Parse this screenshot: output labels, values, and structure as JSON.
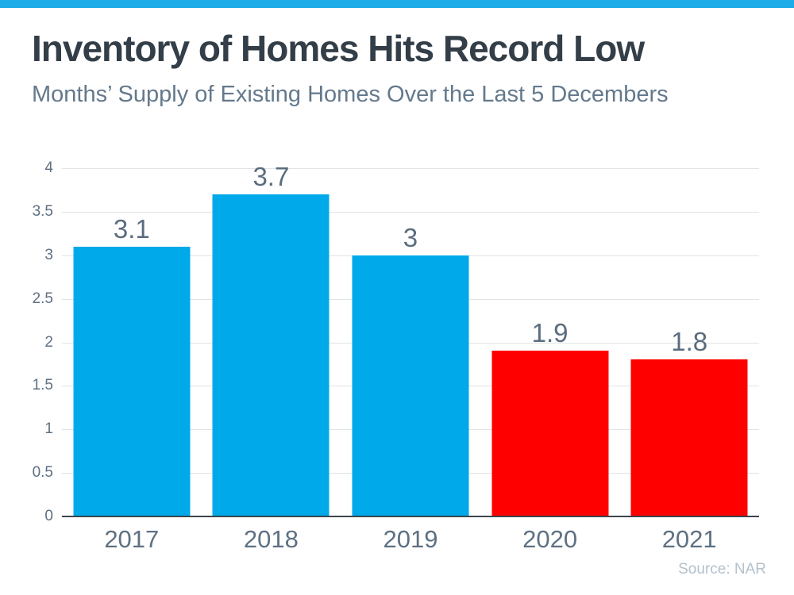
{
  "page": {
    "title": "Inventory of Homes Hits Record Low",
    "subtitle": "Months’ Supply of Existing Homes Over the Last 5 Decembers",
    "source": "Source: NAR"
  },
  "chart_data": {
    "type": "bar",
    "title": "Inventory of Homes Hits Record Low",
    "subtitle": "Months’ Supply of Existing Homes Over the Last 5 Decembers",
    "categories": [
      "2017",
      "2018",
      "2019",
      "2020",
      "2021"
    ],
    "values": [
      3.1,
      3.7,
      3,
      1.9,
      1.8
    ],
    "value_labels": [
      "3.1",
      "3.7",
      "3",
      "1.9",
      "1.8"
    ],
    "bar_colors": [
      "#00A9E9",
      "#00A9E9",
      "#00A9E9",
      "#FF0000",
      "#FF0000"
    ],
    "ylim": [
      0,
      4
    ],
    "yticks": [
      0,
      0.5,
      1,
      1.5,
      2,
      2.5,
      3,
      3.5,
      4
    ],
    "ytick_labels": [
      "0",
      "0.5",
      "1",
      "1.5",
      "2",
      "2.5",
      "3",
      "3.5",
      "4"
    ],
    "grid": true,
    "legend": "none",
    "xlabel": "",
    "ylabel": "",
    "source": "Source: NAR"
  },
  "colors": {
    "accent_bar": "#1CACE8",
    "bar_blue": "#00A9E9",
    "bar_red": "#FF0000",
    "title_text": "#333E48",
    "subtitle_text": "#64798C",
    "axis_text": "#5E7082",
    "value_label_text": "#5A6C7E",
    "x_label_text": "#5E7183",
    "gridline": "#E1E3E4",
    "axis_line": "#3B454E",
    "source_text": "#B4C1CC"
  }
}
